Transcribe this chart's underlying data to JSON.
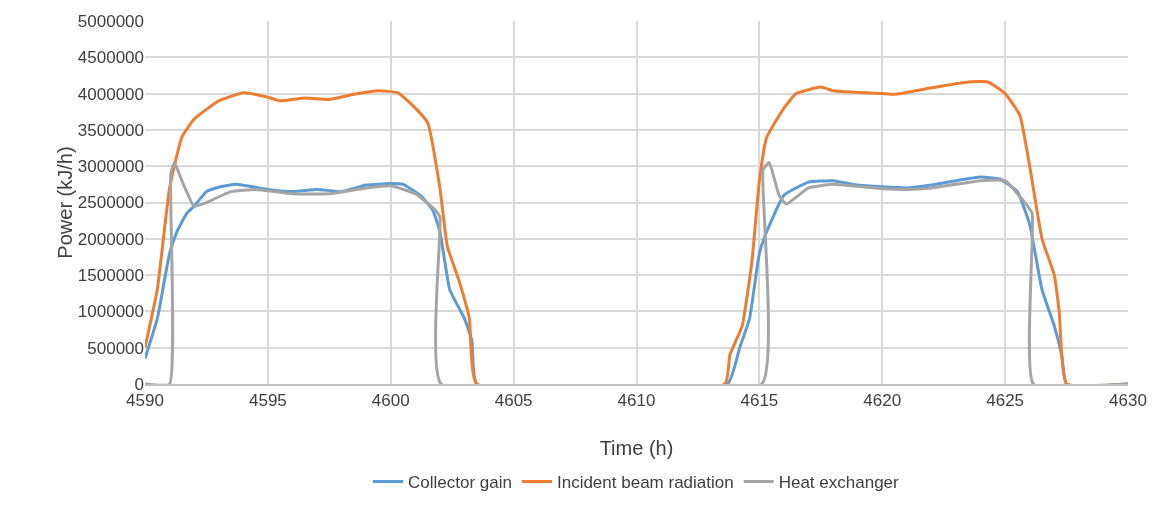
{
  "chart_data": {
    "type": "line",
    "xlabel": "Time (h)",
    "ylabel": "Power (kJ/h)",
    "xlim": [
      4590,
      4630
    ],
    "xticks": [
      4590,
      4595,
      4600,
      4605,
      4610,
      4615,
      4620,
      4625,
      4630
    ],
    "ylim": [
      0,
      5000000
    ],
    "yticks": [
      0,
      500000,
      1000000,
      1500000,
      2000000,
      2500000,
      3000000,
      3500000,
      4000000,
      4500000,
      5000000
    ],
    "grid": true,
    "legend": "bottom",
    "marker": "none",
    "line_style": "solid",
    "series": [
      {
        "name": "Collector gain",
        "color": "#5b9bd5",
        "x": [
          4590,
          4590.5,
          4591,
          4591.3,
          4591.7,
          4592,
          4592.5,
          4593,
          4593.7,
          4595,
          4596,
          4597,
          4598,
          4599,
          4600,
          4600.5,
          4601.2,
          4601.7,
          4602,
          4602.4,
          4603,
          4603.3,
          4603.5,
          4613.7,
          4614.2,
          4614.6,
          4615,
          4615.3,
          4616,
          4617,
          4618,
          4619,
          4621,
          4622,
          4623,
          4624,
          4624.8,
          4625.5,
          4626,
          4626.5,
          4627,
          4627.3,
          4627.5,
          4630
        ],
        "values": [
          350000,
          900000,
          1800000,
          2100000,
          2350000,
          2450000,
          2650000,
          2710000,
          2750000,
          2680000,
          2650000,
          2680000,
          2650000,
          2740000,
          2760000,
          2750000,
          2600000,
          2400000,
          2100000,
          1300000,
          900000,
          600000,
          0,
          0,
          500000,
          900000,
          1800000,
          2100000,
          2600000,
          2780000,
          2800000,
          2740000,
          2700000,
          2740000,
          2800000,
          2850000,
          2820000,
          2650000,
          2200000,
          1300000,
          800000,
          400000,
          0,
          0
        ]
      },
      {
        "name": "Incident beam radiation",
        "color": "#ed7d31",
        "x": [
          4590,
          4590.5,
          4591,
          4591.5,
          4592,
          4593,
          4594,
          4595,
          4595.5,
          4596.5,
          4597.5,
          4598.5,
          4599.5,
          4600.3,
          4601,
          4601.5,
          4602,
          4602.3,
          4602.8,
          4603.2,
          4603.5,
          4613.6,
          4613.8,
          4614.3,
          4614.7,
          4615,
          4615.3,
          4616,
          4616.5,
          4617.5,
          4618,
          4620,
          4620.5,
          4622,
          4623.5,
          4624.3,
          4625,
          4625.6,
          4626,
          4626.5,
          4627,
          4627.2,
          4627.5,
          4630
        ],
        "values": [
          500000,
          1300000,
          2700000,
          3400000,
          3650000,
          3900000,
          4010000,
          3950000,
          3900000,
          3940000,
          3920000,
          3990000,
          4040000,
          4010000,
          3800000,
          3600000,
          2700000,
          1900000,
          1400000,
          900000,
          0,
          0,
          400000,
          800000,
          1700000,
          2800000,
          3400000,
          3800000,
          4000000,
          4090000,
          4040000,
          4000000,
          3990000,
          4080000,
          4160000,
          4160000,
          4000000,
          3700000,
          3000000,
          2000000,
          1500000,
          1000000,
          0,
          0
        ]
      },
      {
        "name": "Heat exchanger",
        "color": "#a5a5a5",
        "x": [
          4590,
          4591,
          4591.05,
          4591.2,
          4591.5,
          4592,
          4592.5,
          4593.5,
          4594.5,
          4596,
          4597.5,
          4599,
          4600,
          4601,
          4601.8,
          4602,
          4602.05,
          4615.1,
          4615.15,
          4615.4,
          4615.8,
          4616.1,
          4617,
          4618,
          4620,
          4621,
          4622,
          4624,
          4625,
          4625.8,
          4626.1,
          4626.15,
          4630
        ],
        "values": [
          0,
          0,
          2900000,
          3050000,
          2800000,
          2450000,
          2500000,
          2650000,
          2680000,
          2620000,
          2620000,
          2700000,
          2730000,
          2620000,
          2400000,
          2300000,
          0,
          0,
          2950000,
          3050000,
          2600000,
          2480000,
          2700000,
          2750000,
          2690000,
          2680000,
          2700000,
          2800000,
          2800000,
          2500000,
          2350000,
          0,
          0
        ]
      }
    ]
  }
}
